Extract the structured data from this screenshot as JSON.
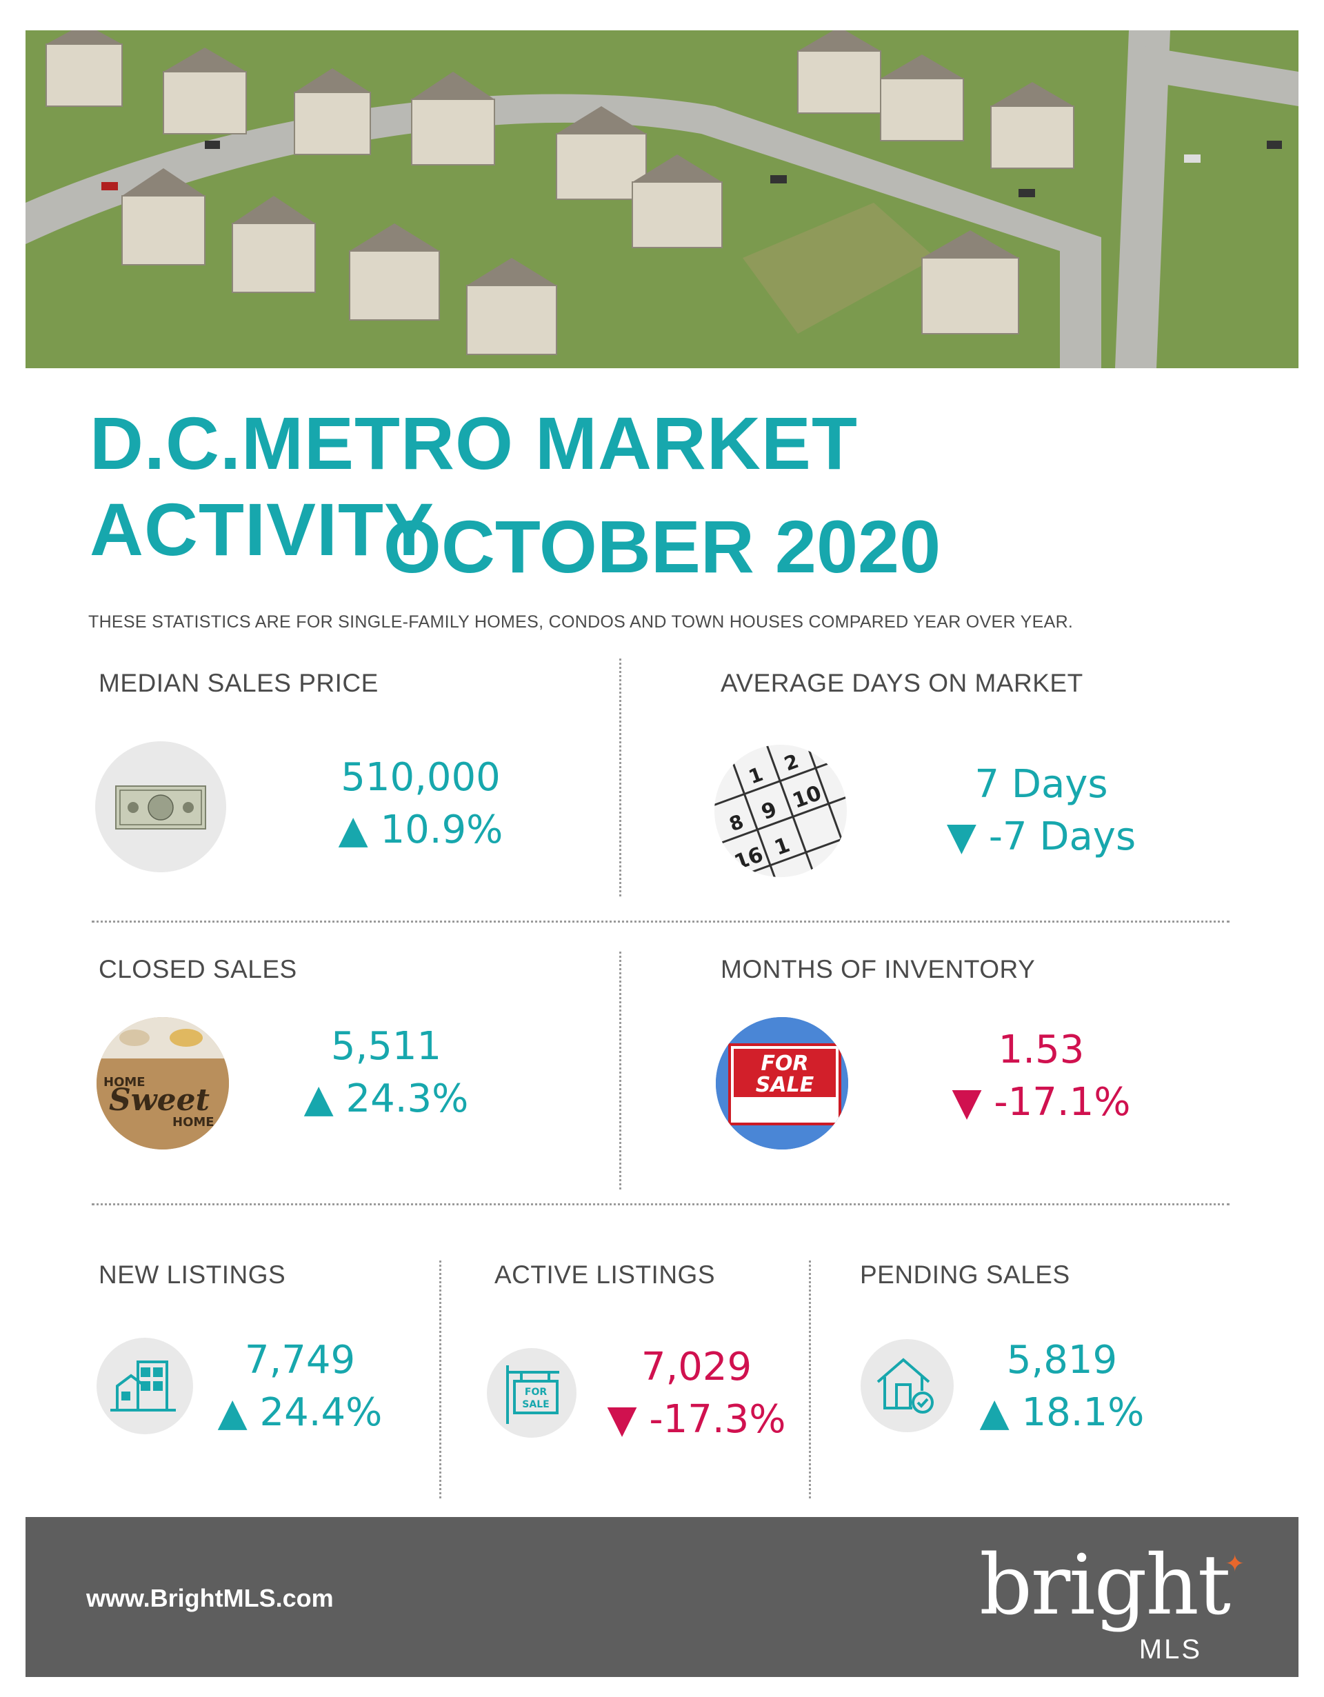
{
  "title_line1": "D.C.METRO MARKET ACTIVITY",
  "title_line2": "OCTOBER 2020",
  "subtitle": "THESE STATISTICS ARE FOR SINGLE-FAMILY HOMES, CONDOS AND TOWN HOUSES COMPARED YEAR OVER YEAR.",
  "stats": {
    "median_sales_price": {
      "label": "MEDIAN SALES PRICE",
      "value": "510,000",
      "change": "▲ 10.9%",
      "icon": "dollar-bill-icon"
    },
    "avg_days_on_market": {
      "label": "AVERAGE DAYS ON MARKET",
      "value": "7 Days",
      "change": "▼ -7 Days",
      "icon": "calendar-icon"
    },
    "closed_sales": {
      "label": "CLOSED SALES",
      "value": "5,511",
      "change": "▲ 24.3%",
      "icon": "home-sweet-home-mat-icon",
      "icon_text": "HOME Sweet HOME"
    },
    "months_of_inventory": {
      "label": "MONTHS OF INVENTORY",
      "value": "1.53",
      "change": "▼ -17.1%",
      "icon": "for-sale-sign-icon",
      "icon_text": "FOR SALE"
    },
    "new_listings": {
      "label": "NEW LISTINGS",
      "value": "7,749",
      "change": "▲ 24.4%",
      "icon": "buildings-icon"
    },
    "active_listings": {
      "label": "ACTIVE LISTINGS",
      "value": "7,029",
      "change": "▼ -17.3%",
      "icon": "for-sale-signpost-icon",
      "icon_text": "FOR SALE"
    },
    "pending_sales": {
      "label": "PENDING SALES",
      "value": "5,819",
      "change": "▲ 18.1%",
      "icon": "house-check-icon"
    }
  },
  "colors": {
    "accent": "#17a7ad",
    "negative": "#d0114f",
    "footer": "#5e5e5e",
    "brand_spark": "#e8672c"
  },
  "footer": {
    "url": "www.BrightMLS.com",
    "brand": "bright",
    "brand_sub": "MLS"
  }
}
